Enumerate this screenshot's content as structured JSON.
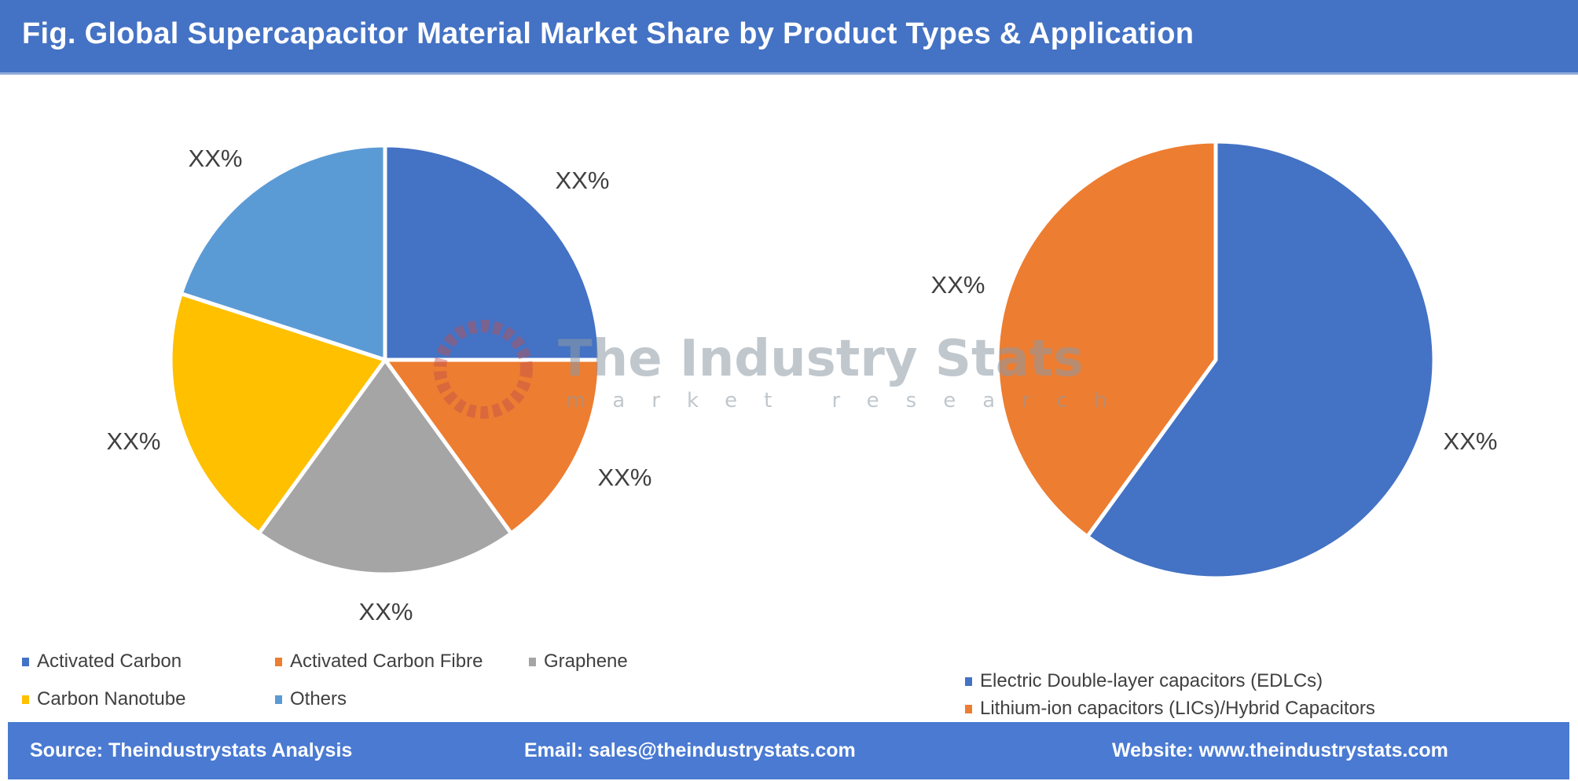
{
  "title": "Fig. Global Supercapacitor Material Market Share by Product Types & Application",
  "watermark": {
    "name": "The Industry Stats",
    "tagline": "market research"
  },
  "chart_data": [
    {
      "type": "pie",
      "categories": [
        "Activated Carbon",
        "Activated Carbon Fibre",
        "Graphene",
        "Carbon Nanotube",
        "Others"
      ],
      "values": [
        25,
        15,
        20,
        20,
        20
      ],
      "data_labels": [
        "XX%",
        "XX%",
        "XX%",
        "XX%",
        "XX%"
      ],
      "colors": [
        "#4472c4",
        "#ed7d31",
        "#a5a5a5",
        "#ffc000",
        "#5b9bd5"
      ],
      "legend": "bottom-left"
    },
    {
      "type": "pie",
      "categories": [
        "Electric Double-layer capacitors (EDLCs)",
        "Lithium-ion capacitors (LICs)/Hybrid Capacitors"
      ],
      "values": [
        60,
        40
      ],
      "data_labels": [
        "XX%",
        "XX%"
      ],
      "colors": [
        "#4472c4",
        "#ed7d31"
      ],
      "legend": "bottom-right"
    }
  ],
  "footer": {
    "source": "Source: Theindustrystats Analysis",
    "email": "Email: sales@theindustrystats.com",
    "website": "Website: www.theindustrystats.com"
  }
}
